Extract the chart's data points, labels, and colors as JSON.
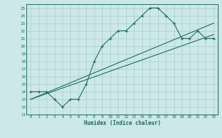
{
  "xlabel": "Humidex (Indice chaleur)",
  "bg_color": "#cce8e8",
  "line_color": "#1a6b5a",
  "grid_color": "#aacccc",
  "xlim": [
    -0.5,
    23.5
  ],
  "ylim": [
    11,
    25.5
  ],
  "xticks": [
    0,
    1,
    2,
    3,
    4,
    5,
    6,
    7,
    8,
    9,
    10,
    11,
    12,
    13,
    14,
    15,
    16,
    17,
    18,
    19,
    20,
    21,
    22,
    23
  ],
  "yticks": [
    11,
    12,
    13,
    14,
    15,
    16,
    17,
    18,
    19,
    20,
    21,
    22,
    23,
    24,
    25
  ],
  "main_x": [
    0,
    1,
    2,
    3,
    4,
    5,
    6,
    7,
    8,
    9,
    10,
    11,
    12,
    13,
    14,
    15,
    16,
    17,
    18,
    19,
    20,
    21,
    22,
    23
  ],
  "main_y": [
    14,
    14,
    14,
    13,
    12,
    13,
    13,
    15,
    18,
    20,
    21,
    22,
    22,
    23,
    24,
    25,
    25,
    24,
    23,
    21,
    21,
    22,
    21,
    21
  ],
  "line1_x": [
    0,
    23
  ],
  "line1_y": [
    13.0,
    21.5
  ],
  "line2_x": [
    0,
    23
  ],
  "line2_y": [
    13.0,
    23.0
  ]
}
